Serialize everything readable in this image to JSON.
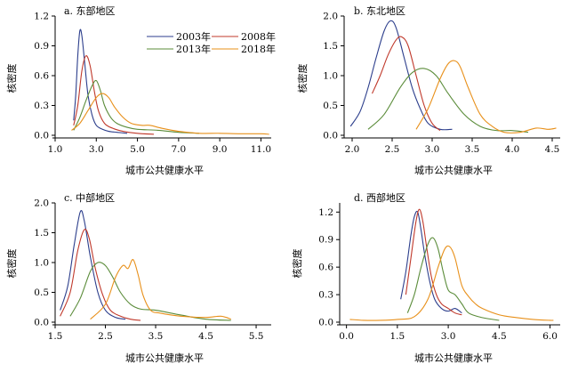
{
  "chart_data": [
    {
      "type": "line",
      "title": "a. 东部地区",
      "xlabel": "城市公共健康水平",
      "ylabel": "核密度",
      "xlim": [
        1.0,
        11.5
      ],
      "ylim": [
        0,
        1.2
      ],
      "xticks": [
        1.0,
        3.0,
        5.0,
        7.0,
        9.0,
        11.0
      ],
      "xtick_labels": [
        "1.0",
        "3.0",
        "5.0",
        "7.0",
        "9.0",
        "11.0"
      ],
      "yticks": [
        0.0,
        0.3,
        0.6,
        0.9,
        1.2
      ],
      "ytick_labels": [
        "0.0",
        "0.3",
        "0.6",
        "0.9",
        "1.2"
      ],
      "legend": {
        "placement": "top-right",
        "entries": [
          {
            "label": "2003年",
            "color": "#2c3e8c"
          },
          {
            "label": "2008年",
            "color": "#c0392b"
          },
          {
            "label": "2013年",
            "color": "#5b8c3a"
          },
          {
            "label": "2018年",
            "color": "#e8901a"
          }
        ]
      },
      "series": [
        {
          "name": "2003年",
          "color": "#2c3e8c",
          "x": [
            1.9,
            2.0,
            2.1,
            2.2,
            2.3,
            2.45,
            2.6,
            2.8,
            3.0,
            3.3,
            3.6,
            4.0,
            4.5
          ],
          "y": [
            0.15,
            0.4,
            0.8,
            1.05,
            1.0,
            0.7,
            0.4,
            0.2,
            0.1,
            0.06,
            0.04,
            0.03,
            0.02
          ]
        },
        {
          "name": "2008年",
          "color": "#c0392b",
          "x": [
            1.9,
            2.1,
            2.3,
            2.5,
            2.7,
            2.9,
            3.1,
            3.4,
            3.8,
            4.3,
            5.0,
            5.8
          ],
          "y": [
            0.1,
            0.3,
            0.65,
            0.8,
            0.7,
            0.45,
            0.25,
            0.12,
            0.07,
            0.04,
            0.02,
            0.01
          ]
        },
        {
          "name": "2013年",
          "color": "#5b8c3a",
          "x": [
            1.9,
            2.2,
            2.5,
            2.8,
            3.0,
            3.2,
            3.4,
            3.7,
            4.0,
            4.5,
            5.0,
            6.0,
            7.0,
            8.0
          ],
          "y": [
            0.05,
            0.18,
            0.35,
            0.5,
            0.55,
            0.45,
            0.3,
            0.18,
            0.12,
            0.08,
            0.06,
            0.05,
            0.03,
            0.02
          ]
        },
        {
          "name": "2018年",
          "color": "#e8901a",
          "x": [
            1.8,
            2.2,
            2.6,
            3.0,
            3.3,
            3.6,
            3.9,
            4.3,
            4.7,
            5.2,
            5.6,
            6.2,
            7.0,
            8.0,
            9.0,
            10.0,
            11.0,
            11.4
          ],
          "y": [
            0.05,
            0.12,
            0.25,
            0.38,
            0.42,
            0.38,
            0.28,
            0.18,
            0.12,
            0.1,
            0.1,
            0.07,
            0.04,
            0.02,
            0.02,
            0.015,
            0.015,
            0.01
          ]
        }
      ]
    },
    {
      "type": "line",
      "title": "b. 东北地区",
      "xlabel": "城市公共健康水平",
      "ylabel": "核密度",
      "xlim": [
        1.9,
        4.6
      ],
      "ylim": [
        0,
        2.0
      ],
      "xticks": [
        2.0,
        2.5,
        3.0,
        3.5,
        4.0,
        4.5
      ],
      "xtick_labels": [
        "2.0",
        "2.5",
        "3.0",
        "3.5",
        "4.0",
        "4.5"
      ],
      "yticks": [
        0.0,
        0.5,
        1.0,
        1.5,
        2.0
      ],
      "ytick_labels": [
        "0.0",
        "0.5",
        "1.0",
        "1.5",
        "2.0"
      ],
      "series": [
        {
          "name": "2003年",
          "color": "#2c3e8c",
          "x": [
            1.98,
            2.1,
            2.2,
            2.3,
            2.4,
            2.48,
            2.55,
            2.65,
            2.75,
            2.85,
            2.95,
            3.1,
            3.25
          ],
          "y": [
            0.15,
            0.4,
            0.8,
            1.3,
            1.75,
            1.92,
            1.8,
            1.3,
            0.8,
            0.45,
            0.2,
            0.1,
            0.1
          ]
        },
        {
          "name": "2008年",
          "color": "#c0392b",
          "x": [
            2.25,
            2.35,
            2.45,
            2.55,
            2.62,
            2.7,
            2.8,
            2.9,
            3.0,
            3.1
          ],
          "y": [
            0.7,
            1.0,
            1.35,
            1.6,
            1.65,
            1.5,
            1.0,
            0.5,
            0.2,
            0.08
          ]
        },
        {
          "name": "2013年",
          "color": "#5b8c3a",
          "x": [
            2.2,
            2.4,
            2.6,
            2.75,
            2.9,
            3.05,
            3.2,
            3.4,
            3.6,
            3.8,
            4.0,
            4.2
          ],
          "y": [
            0.1,
            0.35,
            0.8,
            1.05,
            1.12,
            1.0,
            0.7,
            0.35,
            0.15,
            0.08,
            0.08,
            0.05
          ]
        },
        {
          "name": "2018年",
          "color": "#e8901a",
          "x": [
            2.8,
            2.95,
            3.1,
            3.2,
            3.28,
            3.35,
            3.45,
            3.6,
            3.75,
            3.9,
            4.1,
            4.3,
            4.45,
            4.55
          ],
          "y": [
            0.1,
            0.45,
            0.95,
            1.2,
            1.25,
            1.15,
            0.8,
            0.35,
            0.15,
            0.05,
            0.05,
            0.12,
            0.1,
            0.12
          ]
        }
      ]
    },
    {
      "type": "line",
      "title": "c. 中部地区",
      "xlabel": "城市公共健康水平",
      "ylabel": "核密度",
      "xlim": [
        1.5,
        5.8
      ],
      "ylim": [
        0,
        2.0
      ],
      "xticks": [
        1.5,
        2.5,
        3.5,
        4.5,
        5.5
      ],
      "xtick_labels": [
        "1.5",
        "2.5",
        "3.5",
        "4.5",
        "5.5"
      ],
      "yticks": [
        0.0,
        0.5,
        1.0,
        1.5,
        2.0
      ],
      "ytick_labels": [
        "0.0",
        "0.5",
        "1.0",
        "1.5",
        "2.0"
      ],
      "series": [
        {
          "name": "2003年",
          "color": "#2c3e8c",
          "x": [
            1.6,
            1.75,
            1.88,
            2.0,
            2.08,
            2.2,
            2.35,
            2.5,
            2.7,
            2.9
          ],
          "y": [
            0.2,
            0.6,
            1.3,
            1.85,
            1.7,
            1.1,
            0.5,
            0.2,
            0.08,
            0.05
          ]
        },
        {
          "name": "2008年",
          "color": "#c0392b",
          "x": [
            1.6,
            1.8,
            1.95,
            2.08,
            2.18,
            2.3,
            2.45,
            2.6,
            2.8,
            3.0,
            3.2
          ],
          "y": [
            0.1,
            0.5,
            1.2,
            1.55,
            1.4,
            0.9,
            0.45,
            0.2,
            0.1,
            0.05,
            0.03
          ]
        },
        {
          "name": "2013年",
          "color": "#5b8c3a",
          "x": [
            1.8,
            2.0,
            2.2,
            2.35,
            2.5,
            2.65,
            2.8,
            3.0,
            3.2,
            3.5,
            4.0,
            4.5,
            5.0
          ],
          "y": [
            0.1,
            0.4,
            0.85,
            1.0,
            0.95,
            0.75,
            0.5,
            0.3,
            0.22,
            0.2,
            0.12,
            0.05,
            0.03
          ]
        },
        {
          "name": "2018年",
          "color": "#e8901a",
          "x": [
            2.2,
            2.5,
            2.7,
            2.85,
            2.95,
            3.05,
            3.15,
            3.25,
            3.4,
            3.6,
            4.0,
            4.5,
            4.8,
            5.0
          ],
          "y": [
            0.05,
            0.3,
            0.75,
            0.95,
            0.9,
            1.05,
            0.8,
            0.45,
            0.2,
            0.15,
            0.1,
            0.08,
            0.1,
            0.05
          ]
        }
      ]
    },
    {
      "type": "line",
      "title": "d. 西部地区",
      "xlabel": "城市公共健康水平",
      "ylabel": "核密度",
      "xlim": [
        -0.2,
        6.3
      ],
      "ylim": [
        0,
        1.3
      ],
      "xticks": [
        0.0,
        1.5,
        3.0,
        4.5,
        6.0
      ],
      "xtick_labels": [
        "0.0",
        "1.5",
        "3.0",
        "4.5",
        "6.0"
      ],
      "yticks": [
        0.0,
        0.3,
        0.6,
        0.9,
        1.2
      ],
      "ytick_labels": [
        "0.0",
        "0.3",
        "0.6",
        "0.9",
        "1.2"
      ],
      "series": [
        {
          "name": "2003年",
          "color": "#2c3e8c",
          "x": [
            1.6,
            1.75,
            1.9,
            2.0,
            2.1,
            2.2,
            2.3,
            2.45,
            2.6,
            2.8,
            3.0,
            3.2,
            3.4
          ],
          "y": [
            0.25,
            0.55,
            0.95,
            1.15,
            1.2,
            1.0,
            0.75,
            0.45,
            0.25,
            0.15,
            0.12,
            0.15,
            0.1
          ]
        },
        {
          "name": "2008年",
          "color": "#c0392b",
          "x": [
            1.75,
            1.9,
            2.05,
            2.15,
            2.25,
            2.35,
            2.5,
            2.65,
            2.8,
            3.0,
            3.2,
            3.4
          ],
          "y": [
            0.3,
            0.7,
            1.1,
            1.23,
            1.1,
            0.85,
            0.5,
            0.3,
            0.2,
            0.15,
            0.1,
            0.08
          ]
        },
        {
          "name": "2013年",
          "color": "#5b8c3a",
          "x": [
            1.8,
            2.0,
            2.2,
            2.4,
            2.55,
            2.7,
            2.85,
            3.0,
            3.2,
            3.4,
            3.6,
            4.0,
            4.5
          ],
          "y": [
            0.1,
            0.3,
            0.6,
            0.85,
            0.92,
            0.8,
            0.55,
            0.35,
            0.3,
            0.2,
            0.1,
            0.05,
            0.02
          ]
        },
        {
          "name": "2018年",
          "color": "#e8901a",
          "x": [
            0.1,
            0.5,
            1.0,
            1.5,
            2.0,
            2.4,
            2.7,
            2.9,
            3.05,
            3.2,
            3.4,
            3.6,
            3.8,
            4.0,
            4.5,
            5.0,
            5.5,
            6.0,
            6.1
          ],
          "y": [
            0.03,
            0.02,
            0.02,
            0.03,
            0.06,
            0.25,
            0.6,
            0.8,
            0.82,
            0.7,
            0.4,
            0.28,
            0.2,
            0.15,
            0.08,
            0.05,
            0.03,
            0.02,
            0.02
          ]
        }
      ]
    }
  ]
}
